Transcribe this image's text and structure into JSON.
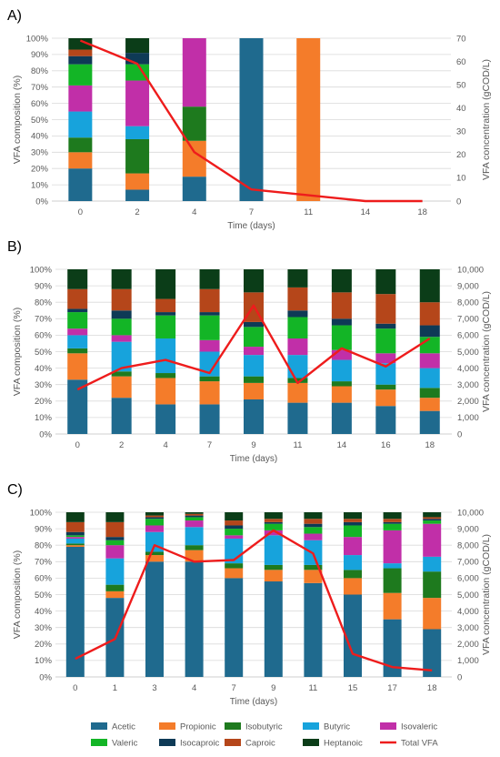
{
  "colors": {
    "Acetic": "#1f6a8e",
    "Propionic": "#f47c2a",
    "Isobutyric": "#1e7a1e",
    "Butyric": "#17a3dc",
    "Isovaleric": "#c12fa8",
    "Valeric": "#13b526",
    "Isocaproic": "#0e3a56",
    "Caproic": "#b5461a",
    "Heptanoic": "#0b3d18",
    "Total VFA": "#ee1c1c",
    "grid": "#d9d9d9",
    "axis": "#bfbfbf",
    "text": "#595959"
  },
  "legend": {
    "items": [
      "Acetic",
      "Propionic",
      "Isobutyric",
      "Butyric",
      "Isovaleric",
      "Valeric",
      "Isocaproic",
      "Caproic",
      "Heptanoic",
      "Total VFA"
    ]
  },
  "chart_data": [
    {
      "panel_label": "A)",
      "type": "bar",
      "stacked": true,
      "categories": [
        "0",
        "2",
        "4",
        "7",
        "11",
        "14",
        "18"
      ],
      "xlabel": "Time (days)",
      "ylabel": "VFA composition (%)",
      "y2label": "VFA concentration (gCOD/L)",
      "ylim": [
        0,
        100
      ],
      "y_ticks": [
        "0%",
        "10%",
        "20%",
        "30%",
        "40%",
        "50%",
        "60%",
        "70%",
        "80%",
        "90%",
        "100%"
      ],
      "y2lim": [
        0,
        70
      ],
      "y2_ticks": [
        "0",
        "10",
        "20",
        "30",
        "40",
        "50",
        "60",
        "70"
      ],
      "grid": true,
      "series": [
        {
          "name": "Acetic",
          "values": [
            20,
            7,
            15,
            100,
            0,
            0,
            0
          ]
        },
        {
          "name": "Propionic",
          "values": [
            10,
            10,
            22,
            0,
            100,
            0,
            0
          ]
        },
        {
          "name": "Isobutyric",
          "values": [
            9,
            21,
            21,
            0,
            0,
            0,
            0
          ]
        },
        {
          "name": "Butyric",
          "values": [
            16,
            8,
            0,
            0,
            0,
            0,
            0
          ]
        },
        {
          "name": "Isovaleric",
          "values": [
            16,
            28,
            42,
            0,
            0,
            0,
            0
          ]
        },
        {
          "name": "Valeric",
          "values": [
            13,
            10,
            0,
            0,
            0,
            0,
            0
          ]
        },
        {
          "name": "Isocaproic",
          "values": [
            5,
            7,
            0,
            0,
            0,
            0,
            0
          ]
        },
        {
          "name": "Caproic",
          "values": [
            4,
            0,
            0,
            0,
            0,
            0,
            0
          ]
        },
        {
          "name": "Heptanoic",
          "values": [
            7,
            9,
            0,
            0,
            0,
            0,
            0
          ]
        }
      ],
      "line": {
        "name": "Total VFA",
        "values": [
          69,
          59,
          21,
          5,
          2.5,
          0,
          0
        ]
      }
    },
    {
      "panel_label": "B)",
      "type": "bar",
      "stacked": true,
      "categories": [
        "0",
        "2",
        "4",
        "7",
        "9",
        "11",
        "14",
        "16",
        "18"
      ],
      "xlabel": "Time (days)",
      "ylabel": "VFA composition (%)",
      "y2label": "VFA concentration (gCOD/L)",
      "ylim": [
        0,
        100
      ],
      "y_ticks": [
        "0%",
        "10%",
        "20%",
        "30%",
        "40%",
        "50%",
        "60%",
        "70%",
        "80%",
        "90%",
        "100%"
      ],
      "y2lim": [
        0,
        10000
      ],
      "y2_ticks": [
        "0",
        "1,000",
        "2,000",
        "3,000",
        "4,000",
        "5,000",
        "6,000",
        "7,000",
        "8,000",
        "9,000",
        "10,000"
      ],
      "grid": true,
      "series": [
        {
          "name": "Acetic",
          "values": [
            33,
            22,
            18,
            18,
            21,
            19,
            19,
            17,
            14
          ]
        },
        {
          "name": "Propionic",
          "values": [
            16,
            13,
            16,
            14,
            10,
            12,
            10,
            10,
            8
          ]
        },
        {
          "name": "Isobutyric",
          "values": [
            3,
            3,
            3,
            3,
            4,
            3,
            3,
            3,
            6
          ]
        },
        {
          "name": "Butyric",
          "values": [
            8,
            18,
            21,
            15,
            13,
            14,
            13,
            13,
            12
          ]
        },
        {
          "name": "Isovaleric",
          "values": [
            4,
            4,
            0,
            7,
            5,
            10,
            6,
            6,
            9
          ]
        },
        {
          "name": "Valeric",
          "values": [
            10,
            10,
            14,
            15,
            12,
            13,
            15,
            15,
            10
          ]
        },
        {
          "name": "Isocaproic",
          "values": [
            2,
            5,
            2,
            2,
            3,
            4,
            4,
            3,
            7
          ]
        },
        {
          "name": "Caproic",
          "values": [
            12,
            13,
            8,
            14,
            18,
            14,
            16,
            18,
            14
          ]
        },
        {
          "name": "Heptanoic",
          "values": [
            12,
            12,
            18,
            12,
            14,
            11,
            14,
            15,
            20
          ]
        }
      ],
      "line": {
        "name": "Total VFA",
        "values": [
          2700,
          4000,
          4500,
          3700,
          7800,
          3100,
          5200,
          4100,
          5800
        ]
      }
    },
    {
      "panel_label": "C)",
      "type": "bar",
      "stacked": true,
      "categories": [
        "0",
        "1",
        "3",
        "4",
        "7",
        "9",
        "11",
        "15",
        "17",
        "18"
      ],
      "xlabel": "Time (days)",
      "ylabel": "VFA composition (%)",
      "y2label": "VFA concentration (gCOD/L)",
      "ylim": [
        0,
        100
      ],
      "y_ticks": [
        "0%",
        "10%",
        "20%",
        "30%",
        "40%",
        "50%",
        "60%",
        "70%",
        "80%",
        "90%",
        "100%"
      ],
      "y2lim": [
        0,
        10000
      ],
      "y2_ticks": [
        "0",
        "1,000",
        "2,000",
        "3,000",
        "4,000",
        "5,000",
        "6,000",
        "7,000",
        "8,000",
        "9,000",
        "10,000"
      ],
      "grid": true,
      "series": [
        {
          "name": "Acetic",
          "values": [
            79,
            48,
            70,
            70,
            60,
            58,
            57,
            50,
            35,
            29
          ]
        },
        {
          "name": "Propionic",
          "values": [
            1,
            4,
            4,
            7,
            6,
            7,
            8,
            10,
            16,
            19
          ]
        },
        {
          "name": "Isobutyric",
          "values": [
            1,
            4,
            2,
            3,
            3,
            3,
            3,
            5,
            15,
            16
          ]
        },
        {
          "name": "Butyric",
          "values": [
            3,
            16,
            12,
            11,
            15,
            18,
            15,
            9,
            3,
            9
          ]
        },
        {
          "name": "Isovaleric",
          "values": [
            1,
            8,
            4,
            4,
            2,
            3,
            4,
            11,
            20,
            20
          ]
        },
        {
          "name": "Valeric",
          "values": [
            1,
            3,
            4,
            2,
            4,
            4,
            4,
            7,
            4,
            2
          ]
        },
        {
          "name": "Isocaproic",
          "values": [
            2,
            2,
            1,
            1,
            2,
            1,
            2,
            2,
            1,
            1
          ]
        },
        {
          "name": "Caproic",
          "values": [
            6,
            9,
            1,
            1,
            3,
            2,
            3,
            2,
            2,
            1
          ]
        },
        {
          "name": "Heptanoic",
          "values": [
            6,
            6,
            2,
            1,
            5,
            4,
            4,
            4,
            4,
            3
          ]
        }
      ],
      "line": {
        "name": "Total VFA",
        "values": [
          1100,
          2300,
          8000,
          7000,
          7100,
          8900,
          7500,
          1400,
          600,
          400
        ]
      }
    }
  ]
}
